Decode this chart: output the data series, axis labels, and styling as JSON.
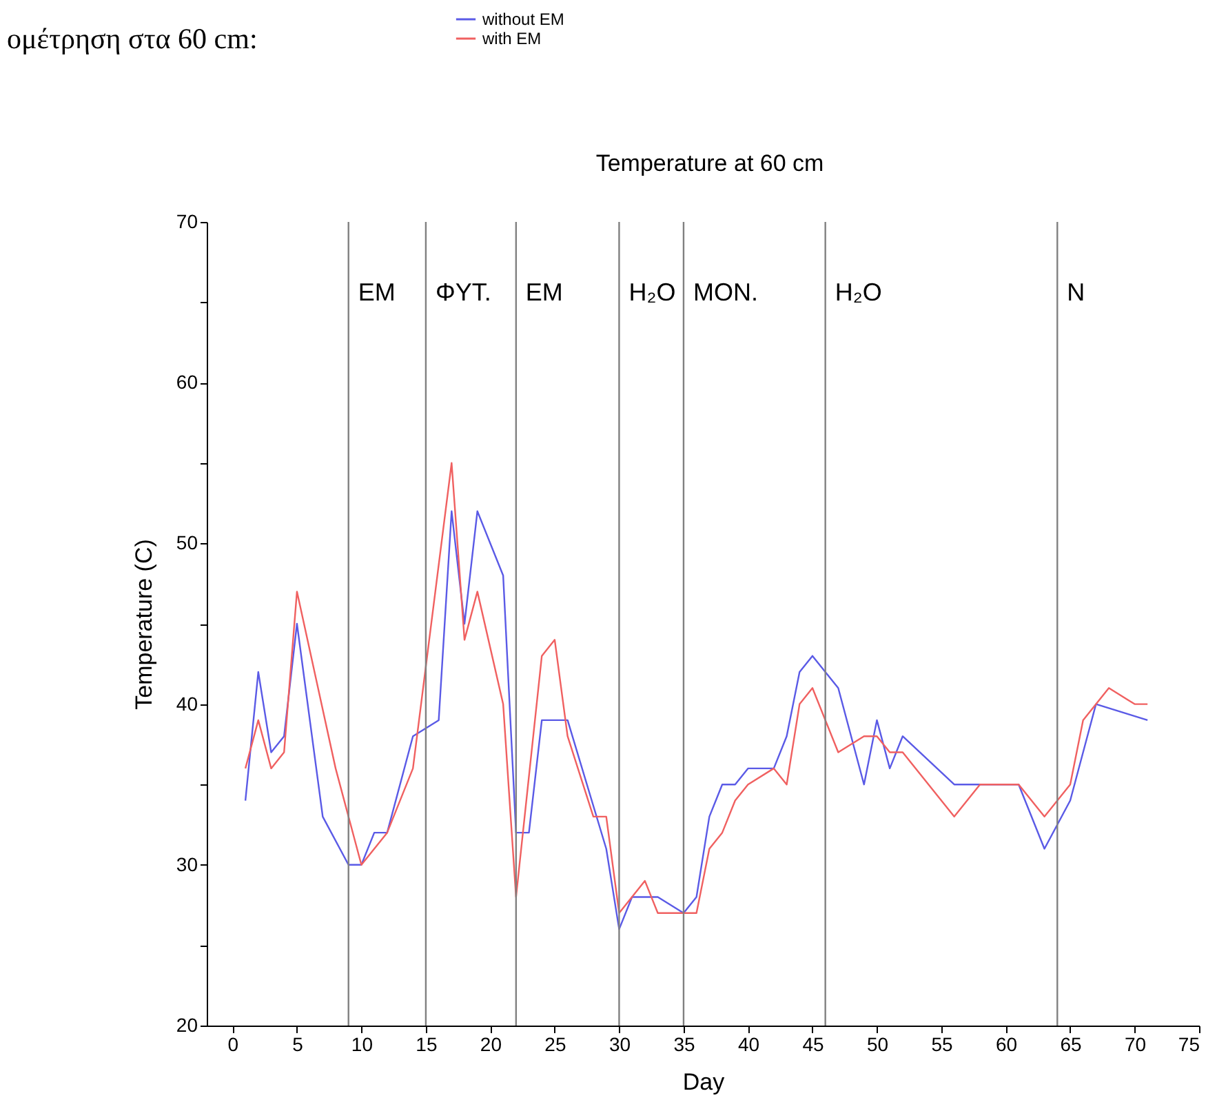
{
  "chart_data": {
    "type": "line",
    "title": "Temperature at 60 cm",
    "xlabel": "Day",
    "ylabel": "Temperature (C)",
    "annotations": [
      "ομέτρηση στα 60 cm:"
    ],
    "xlim": [
      -2,
      75
    ],
    "xticks": [
      0,
      5,
      10,
      15,
      20,
      25,
      30,
      35,
      40,
      45,
      50,
      55,
      60,
      65,
      70,
      75
    ],
    "ylim": [
      20,
      70
    ],
    "yticks": [
      20,
      {
        "value": 25,
        "label": null
      },
      30,
      {
        "value": 35,
        "label": null
      },
      40,
      {
        "value": 45,
        "label": null
      },
      50,
      {
        "value": 55,
        "label": null
      },
      60,
      {
        "value": 65,
        "label": null
      },
      70
    ],
    "grid": false,
    "legend": "top",
    "marker": "none",
    "line_style": "solid",
    "series": [
      {
        "name": "without EM",
        "color": "#5a5ae6",
        "x": [
          1,
          2,
          3,
          4,
          5,
          7,
          9,
          10,
          11,
          12,
          14,
          16,
          17,
          18,
          19,
          21,
          22,
          23,
          24,
          26,
          29,
          30,
          31,
          33,
          35,
          36,
          37,
          38,
          39,
          40,
          42,
          43,
          44,
          45,
          47,
          49,
          50,
          51,
          52,
          56,
          61,
          63,
          65,
          66,
          67,
          71
        ],
        "values": [
          34,
          42,
          37,
          38,
          45,
          33,
          30,
          30,
          32,
          32,
          38,
          39,
          52,
          45,
          52,
          48,
          32,
          32,
          39,
          39,
          31,
          26,
          28,
          28,
          27,
          28,
          33,
          35,
          35,
          36,
          36,
          38,
          42,
          43,
          41,
          35,
          39,
          36,
          38,
          35,
          35,
          31,
          34,
          37,
          40,
          39
        ]
      },
      {
        "name": "with EM",
        "color": "#f06060",
        "x": [
          1,
          2,
          3,
          4,
          5,
          8,
          10,
          12,
          14,
          17,
          18,
          19,
          21,
          22,
          24,
          25,
          26,
          28,
          29,
          30,
          32,
          33,
          35,
          36,
          37,
          38,
          39,
          40,
          42,
          43,
          44,
          45,
          47,
          49,
          50,
          51,
          52,
          56,
          58,
          61,
          63,
          65,
          66,
          68,
          70,
          71
        ],
        "values": [
          36,
          39,
          36,
          37,
          47,
          36,
          30,
          32,
          36,
          55,
          44,
          47,
          40,
          28,
          43,
          44,
          38,
          33,
          33,
          27,
          29,
          27,
          27,
          27,
          31,
          32,
          34,
          35,
          36,
          35,
          40,
          41,
          37,
          38,
          38,
          37,
          37,
          33,
          35,
          35,
          33,
          35,
          39,
          41,
          40,
          40
        ]
      }
    ],
    "ref_lines": [
      {
        "axis": "x",
        "value": 9,
        "label": "EM",
        "color": "#808080"
      },
      {
        "axis": "x",
        "value": 15,
        "label": "ΦYT.",
        "color": "#808080"
      },
      {
        "axis": "x",
        "value": 22,
        "label": "EM",
        "color": "#808080"
      },
      {
        "axis": "x",
        "value": 30,
        "label": "H₂O",
        "color": "#808080"
      },
      {
        "axis": "x",
        "value": 35,
        "label": "MON.",
        "color": "#808080"
      },
      {
        "axis": "x",
        "value": 46,
        "label": "H₂O",
        "color": "#808080"
      },
      {
        "axis": "x",
        "value": 64,
        "label": "N",
        "color": "#808080"
      }
    ]
  }
}
